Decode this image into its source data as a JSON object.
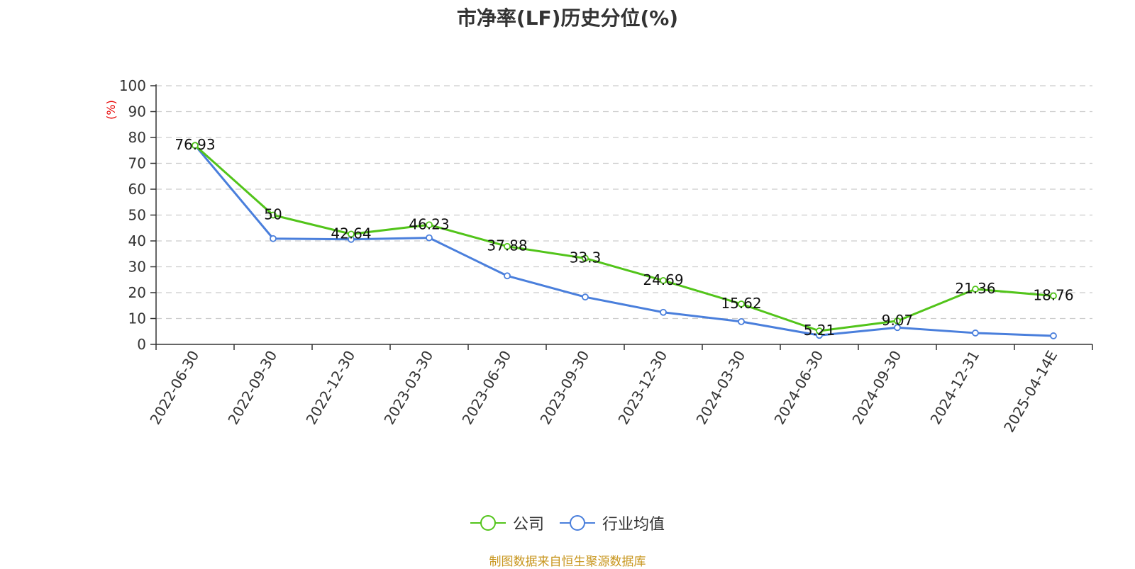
{
  "title": "市净率(LF)历史分位(%)",
  "source": "制图数据来自恒生聚源数据库",
  "chart_data": {
    "type": "line",
    "title": "市净率(LF)历史分位(%)",
    "ylabel": "(%)",
    "xlabel": "",
    "ylim": [
      0,
      100
    ],
    "yticks": [
      0,
      10,
      20,
      30,
      40,
      50,
      60,
      70,
      80,
      90,
      100
    ],
    "grid": true,
    "legend_position": "bottom",
    "categories": [
      "2022-06-30",
      "2022-09-30",
      "2022-12-30",
      "2023-03-30",
      "2023-06-30",
      "2023-09-30",
      "2023-12-30",
      "2024-03-30",
      "2024-06-30",
      "2024-09-30",
      "2024-12-31",
      "2025-04-14E"
    ],
    "series": [
      {
        "name": "公司",
        "color": "#52c41a",
        "values": [
          76.93,
          50,
          42.64,
          46.23,
          37.88,
          33.3,
          24.69,
          15.62,
          5.21,
          9.07,
          21.36,
          18.76
        ],
        "labels": [
          "76.93",
          "50",
          "42.64",
          "46.23",
          "37.88",
          "33.3",
          "24.69",
          "15.62",
          "5.21",
          "9.07",
          "21.36",
          "18.76"
        ]
      },
      {
        "name": "行业均值",
        "color": "#4a7fdc",
        "values": [
          76.93,
          40.9,
          40.6,
          41.2,
          26.5,
          18.3,
          12.4,
          8.8,
          3.5,
          6.5,
          4.4,
          3.3
        ]
      }
    ]
  }
}
